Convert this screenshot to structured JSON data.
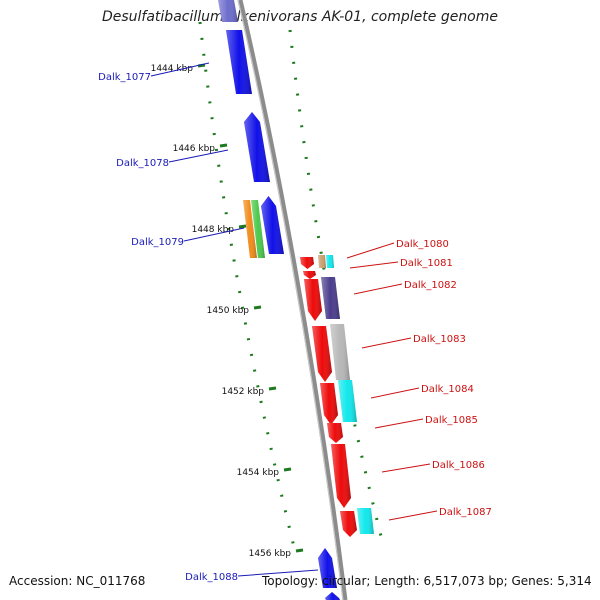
{
  "title": "Desulfatibacillum alkenivorans AK-01, complete genome",
  "footer": {
    "accession": "Accession: NC_011768",
    "summary": "Topology: circular; Length: 6,517,073 bp; Genes: 5,314"
  },
  "colors": {
    "backbone": "#8c8c8c",
    "tick": "#1e7a1e",
    "left_label": "#1a1ab8",
    "right_label": "#cc1111"
  },
  "scale_ticks": [
    {
      "label": "1444 kbp"
    },
    {
      "label": "1446 kbp"
    },
    {
      "label": "1448 kbp"
    },
    {
      "label": "1450 kbp"
    },
    {
      "label": "1452 kbp"
    },
    {
      "label": "1454 kbp"
    },
    {
      "label": "1456 kbp"
    }
  ],
  "genes_left": [
    {
      "name": "Dalk_1077",
      "color": "#1010e8"
    },
    {
      "name": "Dalk_1078",
      "color": "#1010e8"
    },
    {
      "name": "Dalk_1079",
      "color": "#1010e8"
    },
    {
      "name": "Dalk_1088",
      "color": "#1010e8"
    }
  ],
  "genes_right": [
    {
      "name": "Dalk_1080"
    },
    {
      "name": "Dalk_1081"
    },
    {
      "name": "Dalk_1082"
    },
    {
      "name": "Dalk_1083"
    },
    {
      "name": "Dalk_1084"
    },
    {
      "name": "Dalk_1085"
    },
    {
      "name": "Dalk_1086"
    },
    {
      "name": "Dalk_1087"
    }
  ]
}
